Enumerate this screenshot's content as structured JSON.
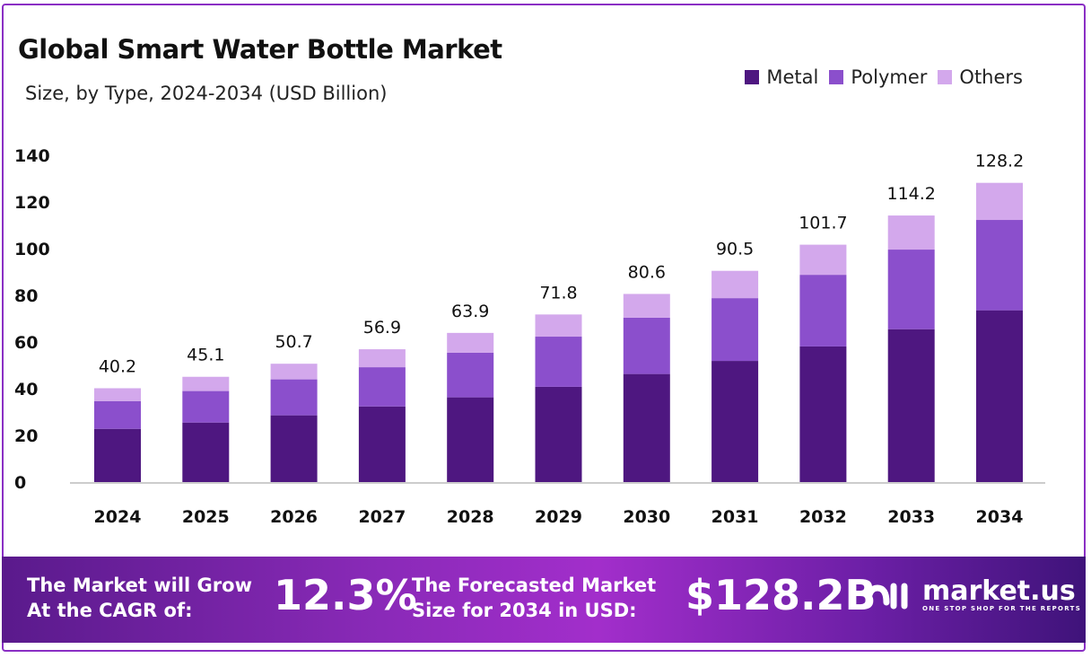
{
  "chart_data": {
    "type": "bar",
    "stacked": true,
    "title": "Global Smart Water Bottle Market",
    "subtitle": "Size, by Type, 2024-2034 (USD Billion)",
    "categories": [
      "2024",
      "2025",
      "2026",
      "2027",
      "2028",
      "2029",
      "2030",
      "2031",
      "2032",
      "2033",
      "2034"
    ],
    "series": [
      {
        "name": "Metal",
        "color": "#4e1780",
        "values": [
          22.8,
          25.5,
          28.6,
          32.4,
          36.3,
          40.8,
          46.3,
          51.9,
          58.1,
          65.5,
          73.6
        ]
      },
      {
        "name": "Polymer",
        "color": "#8b4fcc",
        "values": [
          11.9,
          13.5,
          15.4,
          16.8,
          19.1,
          21.5,
          24.1,
          26.9,
          30.7,
          34.1,
          38.7
        ]
      },
      {
        "name": "Others",
        "color": "#d3a8ec",
        "values": [
          5.5,
          6.1,
          6.7,
          7.7,
          8.5,
          9.5,
          10.2,
          11.7,
          12.9,
          14.6,
          15.9
        ]
      }
    ],
    "totals": [
      "40.2",
      "45.1",
      "50.7",
      "56.9",
      "63.9",
      "71.8",
      "80.6",
      "90.5",
      "101.7",
      "114.2",
      "128.2"
    ],
    "ylim": [
      0,
      140
    ],
    "yticks": [
      "0",
      "20",
      "40",
      "60",
      "80",
      "100",
      "120",
      "140"
    ],
    "grid": false,
    "legend": "top-right"
  },
  "banner": {
    "cagr_label_1": "The Market will Grow",
    "cagr_label_2": "At the CAGR of:",
    "cagr_value": "12.3%",
    "forecast_label_1": "The Forecasted Market",
    "forecast_label_2": "Size for 2034 in USD:",
    "forecast_value": "$128.2B",
    "logo_text": "market.us",
    "logo_tagline": "ONE STOP SHOP FOR THE REPORTS"
  }
}
